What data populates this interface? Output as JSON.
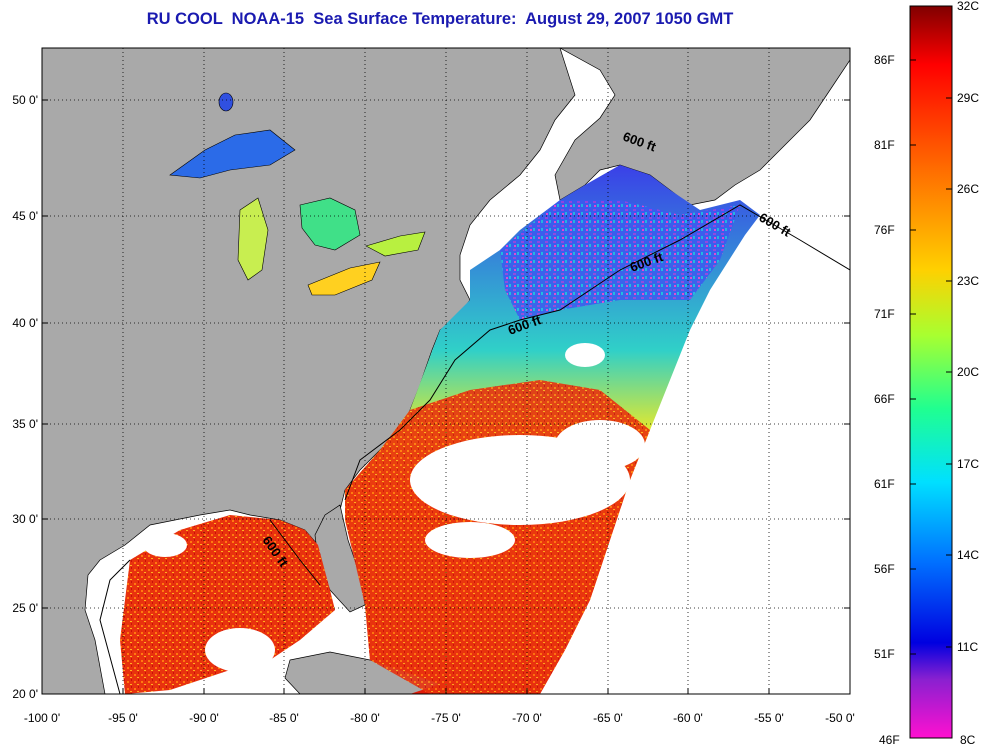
{
  "title": "RU COOL  NOAA-15  Sea Surface Temperature:  August 29, 2007 1050 GMT",
  "map": {
    "lon_range": [
      -100,
      -50
    ],
    "lat_range": [
      20,
      52.5
    ],
    "grid": "dotted",
    "lat_ticks": [
      "20 0'",
      "25 0'",
      "30 0'",
      "35 0'",
      "40 0'",
      "45 0'",
      "50 0'"
    ],
    "lon_ticks": [
      "-100 0'",
      "-95 0'",
      "-90 0'",
      "-85 0'",
      "-80 0'",
      "-75 0'",
      "-70 0'",
      "-65 0'",
      "-60 0'",
      "-55 0'",
      "-50 0'"
    ],
    "contour_labels": [
      "600 ft",
      "600 ft",
      "600 ft",
      "600 ft",
      "600 ft"
    ],
    "colors": {
      "land": "#a9a9a9",
      "cloud": "#ffffff",
      "warm": "#e0200c",
      "cool": "#1e46e6"
    }
  },
  "colorbar": {
    "celsius_labels": [
      "32C",
      "29C",
      "26C",
      "23C",
      "20C",
      "17C",
      "14C",
      "11C",
      "8C"
    ],
    "fahrenheit_labels": [
      "86F",
      "81F",
      "76F",
      "71F",
      "66F",
      "61F",
      "56F",
      "51F",
      "46F"
    ]
  }
}
